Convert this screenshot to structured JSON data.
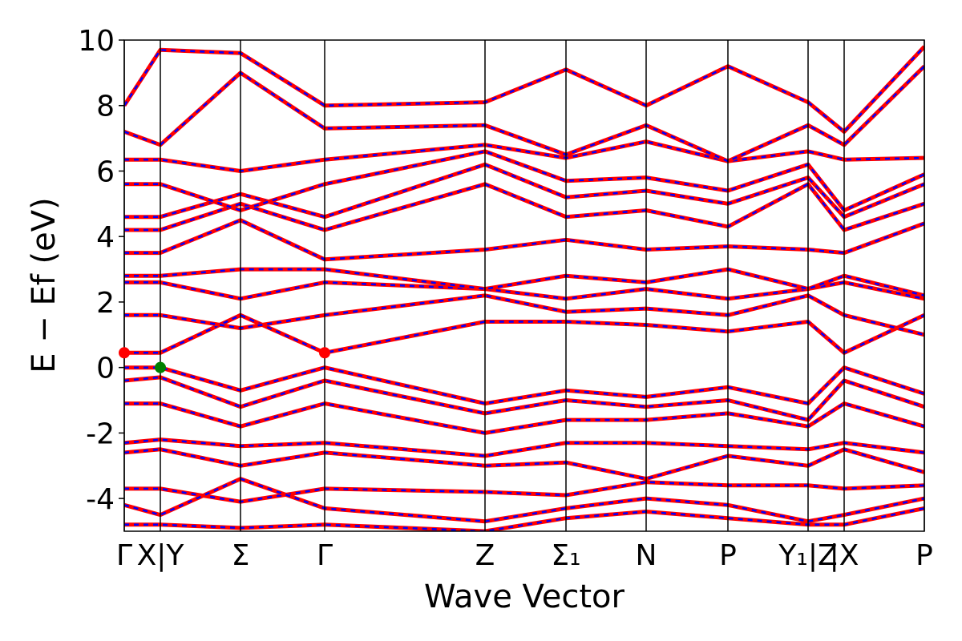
{
  "chart_data": {
    "type": "line",
    "xlabel": "Wave Vector",
    "ylabel": "E − Ef (eV)",
    "x": [
      0,
      45,
      145,
      250,
      450,
      551,
      651,
      753,
      853,
      898,
      998
    ],
    "xlim": [
      0,
      998
    ],
    "xticks": [
      {
        "value": 0,
        "label": "Γ"
      },
      {
        "value": 45,
        "label": "X|Y"
      },
      {
        "value": 145,
        "label": "Σ"
      },
      {
        "value": 250,
        "label": "Γ"
      },
      {
        "value": 450,
        "label": "Z"
      },
      {
        "value": 551,
        "label": "Σ₁"
      },
      {
        "value": 651,
        "label": "N"
      },
      {
        "value": 753,
        "label": "P"
      },
      {
        "value": 853,
        "label": "Y₁|Z"
      },
      {
        "value": 898,
        "label": "|X"
      },
      {
        "value": 998,
        "label": "P"
      }
    ],
    "ylim": [
      -5,
      10
    ],
    "yticks": [
      -4,
      -2,
      0,
      2,
      4,
      6,
      8,
      10
    ],
    "line_color": "#ff0000",
    "dash_color": "#0000ff",
    "bands": [
      [
        0.45,
        0.45,
        1.6,
        0.45,
        1.4,
        1.4,
        1.3,
        1.1,
        1.4,
        0.45,
        1.6
      ],
      [
        1.6,
        1.6,
        1.2,
        1.6,
        2.2,
        1.7,
        1.8,
        1.6,
        2.2,
        1.6,
        1.0
      ],
      [
        2.6,
        2.6,
        2.1,
        2.6,
        2.4,
        2.1,
        2.4,
        2.1,
        2.4,
        2.6,
        2.1
      ],
      [
        2.8,
        2.8,
        3.0,
        3.0,
        2.4,
        2.8,
        2.6,
        3.0,
        2.4,
        2.8,
        2.2
      ],
      [
        3.5,
        3.5,
        4.5,
        3.3,
        3.6,
        3.9,
        3.6,
        3.7,
        3.6,
        3.5,
        4.4
      ],
      [
        4.2,
        4.2,
        5.0,
        4.2,
        5.6,
        4.6,
        4.8,
        4.3,
        5.6,
        4.2,
        5.0
      ],
      [
        4.6,
        4.6,
        5.3,
        4.6,
        6.2,
        5.2,
        5.4,
        5.0,
        5.8,
        4.6,
        5.6
      ],
      [
        5.6,
        5.6,
        4.8,
        5.6,
        6.6,
        5.7,
        5.8,
        5.4,
        6.2,
        4.8,
        5.9
      ],
      [
        6.35,
        6.35,
        6.0,
        6.35,
        6.8,
        6.4,
        6.9,
        6.3,
        6.6,
        6.35,
        6.4
      ],
      [
        7.2,
        6.8,
        9.0,
        7.3,
        7.4,
        6.5,
        7.4,
        6.3,
        7.4,
        6.8,
        9.2
      ],
      [
        8.0,
        9.7,
        9.6,
        8.0,
        8.1,
        9.1,
        8.0,
        9.2,
        8.1,
        7.2,
        9.8
      ],
      [
        0,
        0,
        -0.7,
        0,
        -1.1,
        -0.7,
        -0.9,
        -0.6,
        -1.1,
        0,
        -0.8
      ],
      [
        -0.4,
        -0.3,
        -1.2,
        -0.4,
        -1.4,
        -1.0,
        -1.2,
        -1.0,
        -1.6,
        -0.4,
        -1.2
      ],
      [
        -1.1,
        -1.1,
        -1.8,
        -1.1,
        -2.0,
        -1.6,
        -1.6,
        -1.4,
        -1.8,
        -1.1,
        -1.8
      ],
      [
        -2.3,
        -2.2,
        -2.4,
        -2.3,
        -2.7,
        -2.3,
        -2.3,
        -2.4,
        -2.5,
        -2.3,
        -2.6
      ],
      [
        -2.6,
        -2.5,
        -3.0,
        -2.6,
        -3.0,
        -2.9,
        -3.4,
        -2.7,
        -3.0,
        -2.5,
        -3.2
      ],
      [
        -3.7,
        -3.7,
        -4.1,
        -3.7,
        -3.8,
        -3.9,
        -3.5,
        -3.6,
        -3.6,
        -3.7,
        -3.6
      ],
      [
        -4.2,
        -4.5,
        -3.4,
        -4.3,
        -4.7,
        -4.3,
        -4.0,
        -4.2,
        -4.7,
        -4.5,
        -4.0
      ],
      [
        -4.8,
        -4.8,
        -4.9,
        -4.8,
        -5.0,
        -4.6,
        -4.4,
        -4.6,
        -4.8,
        -4.8,
        -4.3
      ]
    ],
    "markers": [
      {
        "x": 0,
        "y": 0.45,
        "color": "#ff0000"
      },
      {
        "x": 250,
        "y": 0.45,
        "color": "#ff0000"
      },
      {
        "x": 45,
        "y": 0,
        "color": "#008000"
      }
    ]
  }
}
